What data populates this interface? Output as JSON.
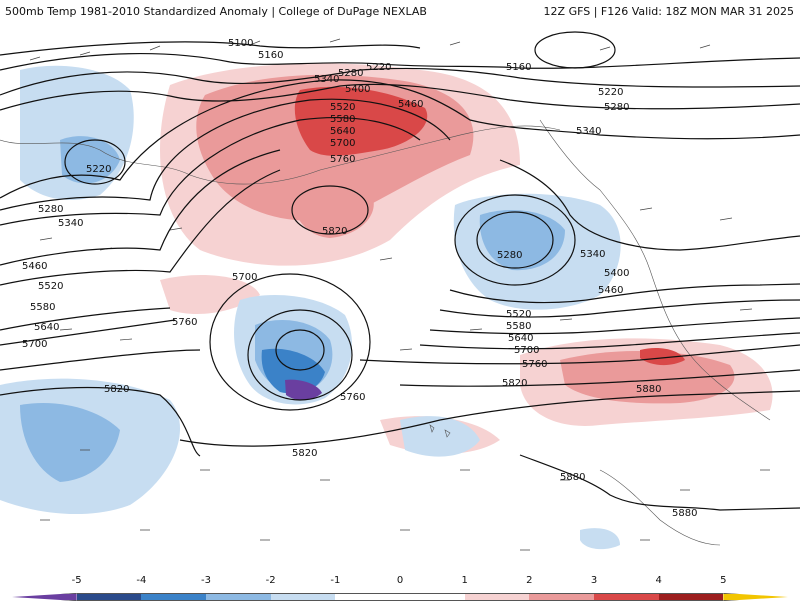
{
  "header": {
    "title": "500mb Temp 1981-2010 Standardized Anomaly | College of DuPage NEXLAB",
    "valid": "12Z GFS | F126 Valid: 18Z MON MAR 31 2025"
  },
  "map": {
    "height_contours_labels": [
      "5100",
      "5160",
      "5220",
      "5280",
      "5340",
      "5400",
      "5460",
      "5520",
      "5580",
      "5640",
      "5700",
      "5760",
      "5820",
      "5880"
    ]
  },
  "colorbar": {
    "ticks": [
      "-5",
      "-4",
      "-3",
      "-2",
      "-1",
      "0",
      "1",
      "2",
      "3",
      "4",
      "5"
    ],
    "colors": [
      "#6a3fa0",
      "#2a4a8a",
      "#3b82c8",
      "#8db9e3",
      "#c7ddf1",
      "#ffffff",
      "#ffffff",
      "#f6d2d2",
      "#ea9a9a",
      "#d94848",
      "#9c1e1e",
      "#f2c500"
    ]
  }
}
